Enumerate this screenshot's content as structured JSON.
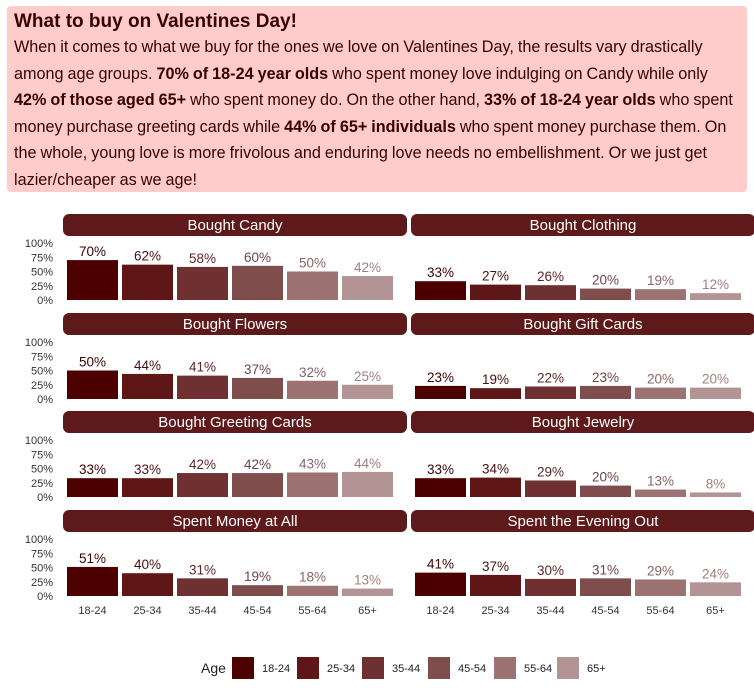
{
  "header": {
    "title": "What to buy on Valentines Day!",
    "body": [
      {
        "text": "When it comes to what we buy for the ones we love on Valentines Day, the results vary drastically among age groups. ",
        "bold": false
      },
      {
        "text": "70% of 18-24 year olds",
        "bold": true
      },
      {
        "text": " who spent money love indulging on Candy while only ",
        "bold": false
      },
      {
        "text": "42% of those aged 65+",
        "bold": true
      },
      {
        "text": " who spent money do. On the other hand, ",
        "bold": false
      },
      {
        "text": "33% of 18-24 year olds",
        "bold": true
      },
      {
        "text": " who spent money purchase greeting cards while ",
        "bold": false
      },
      {
        "text": "44% of 65+ individuals",
        "bold": true
      },
      {
        "text": " who spent money purchase them. On the whole, young love is more frivolous and enduring love needs no embellishment. Or we just get lazier/cheaper as we age!",
        "bold": false
      }
    ]
  },
  "chart_data": {
    "type": "bar",
    "categories": [
      "18-24",
      "25-34",
      "35-44",
      "45-54",
      "55-64",
      "65+"
    ],
    "y_ticks": [
      "100%",
      "75%",
      "50%",
      "25%",
      "0%"
    ],
    "ylim": [
      0,
      100
    ],
    "legend": {
      "title": "Age",
      "position": "bottom"
    },
    "series_colors": [
      "#4d0000",
      "#5e1616",
      "#6e3030",
      "#804d4d",
      "#9c7272",
      "#b39494"
    ],
    "label_colors": [
      "#3a0000",
      "#4a0f0f",
      "#5c2626",
      "#704444",
      "#8a6464",
      "#a07f7f"
    ],
    "facets": [
      {
        "title": "Bought Candy",
        "values": [
          70,
          62,
          58,
          60,
          50,
          42
        ]
      },
      {
        "title": "Bought Clothing",
        "values": [
          33,
          27,
          26,
          20,
          19,
          12
        ]
      },
      {
        "title": "Bought Flowers",
        "values": [
          50,
          44,
          41,
          37,
          32,
          25
        ]
      },
      {
        "title": "Bought Gift Cards",
        "values": [
          23,
          19,
          22,
          23,
          20,
          20
        ]
      },
      {
        "title": "Bought Greeting Cards",
        "values": [
          33,
          33,
          42,
          42,
          43,
          44
        ]
      },
      {
        "title": "Bought Jewelry",
        "values": [
          33,
          34,
          29,
          20,
          13,
          8
        ]
      },
      {
        "title": "Spent Money at All",
        "values": [
          51,
          40,
          31,
          19,
          18,
          13
        ]
      },
      {
        "title": "Spent the Evening Out",
        "values": [
          41,
          37,
          30,
          31,
          29,
          24
        ]
      }
    ]
  }
}
